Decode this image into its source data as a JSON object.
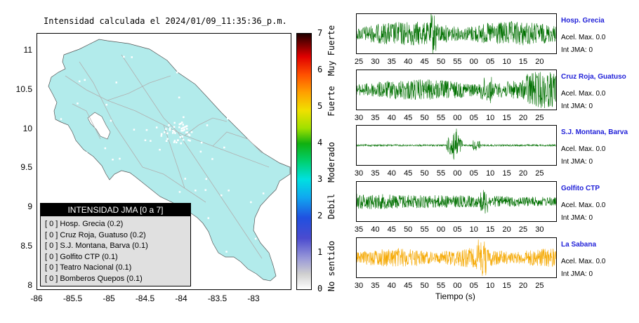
{
  "title": "Intensidad calculada el 2024/01/09_11:35:36_p.m.",
  "map": {
    "y_ticks": [
      "11",
      "10.5",
      "10",
      "9.5",
      "9",
      "8.5",
      "8"
    ],
    "x_ticks": [
      "-86",
      "-85.5",
      "-85",
      "-84.5",
      "-84",
      "-83.5",
      "-83"
    ],
    "land_color": "#b2ebeb"
  },
  "legend": {
    "title": "INTENSIDAD JMA [0 a 7]",
    "items": [
      "[ 0 ]  Hosp. Grecia (0.2)",
      "[ 0 ]  Cruz Roja, Guatuso (0.2)",
      "[ 0 ]  S.J. Montana, Barva (0.1)",
      "[ 0 ]  Golfito CTP (0.1)",
      "[ 0 ]  Teatro Nacional (0.1)",
      "[ 0 ]  Bomberos Quepos (0.1)"
    ]
  },
  "colorbar": {
    "ticks": [
      "7",
      "6",
      "5",
      "4",
      "3",
      "2",
      "1",
      "0"
    ],
    "labels": [
      "Muy Fuerte",
      "Fuerte",
      "Moderado",
      "Debil",
      "No sentido"
    ]
  },
  "stations": [
    {
      "name": "Hosp. Grecia",
      "accel": "Acel. Max. 0.0",
      "int": "Int JMA: 0",
      "color": "#007000",
      "ticks": [
        "25",
        "30",
        "35",
        "40",
        "45",
        "50",
        "55",
        "00",
        "05",
        "10",
        "15",
        "20"
      ]
    },
    {
      "name": "Cruz Roja, Guatuso",
      "accel": "Acel. Max. 0.0",
      "int": "Int JMA: 0",
      "color": "#007000",
      "ticks": [
        "30",
        "35",
        "40",
        "45",
        "50",
        "55",
        "00",
        "05",
        "10",
        "15",
        "20",
        "25"
      ]
    },
    {
      "name": "S.J. Montana, Barva",
      "accel": "Acel. Max. 0.0",
      "int": "Int JMA: 0",
      "color": "#007000",
      "ticks": [
        "30",
        "35",
        "40",
        "45",
        "50",
        "55",
        "00",
        "05",
        "10",
        "15",
        "20",
        "25"
      ]
    },
    {
      "name": "Golfito CTP",
      "accel": "Acel. Max. 0.0",
      "int": "Int JMA: 0",
      "color": "#007000",
      "ticks": [
        "35",
        "40",
        "45",
        "50",
        "55",
        "00",
        "05",
        "10",
        "15",
        "20",
        "25",
        "30"
      ]
    },
    {
      "name": "La Sabana",
      "accel": "Acel. Max. 0.0",
      "int": "Int JMA: 0",
      "color": "#f5a800",
      "ticks": [
        "30",
        "35",
        "40",
        "45",
        "50",
        "55",
        "00",
        "05",
        "10",
        "15",
        "20",
        "25"
      ]
    }
  ],
  "time_axis_label": "Tiempo (s)"
}
